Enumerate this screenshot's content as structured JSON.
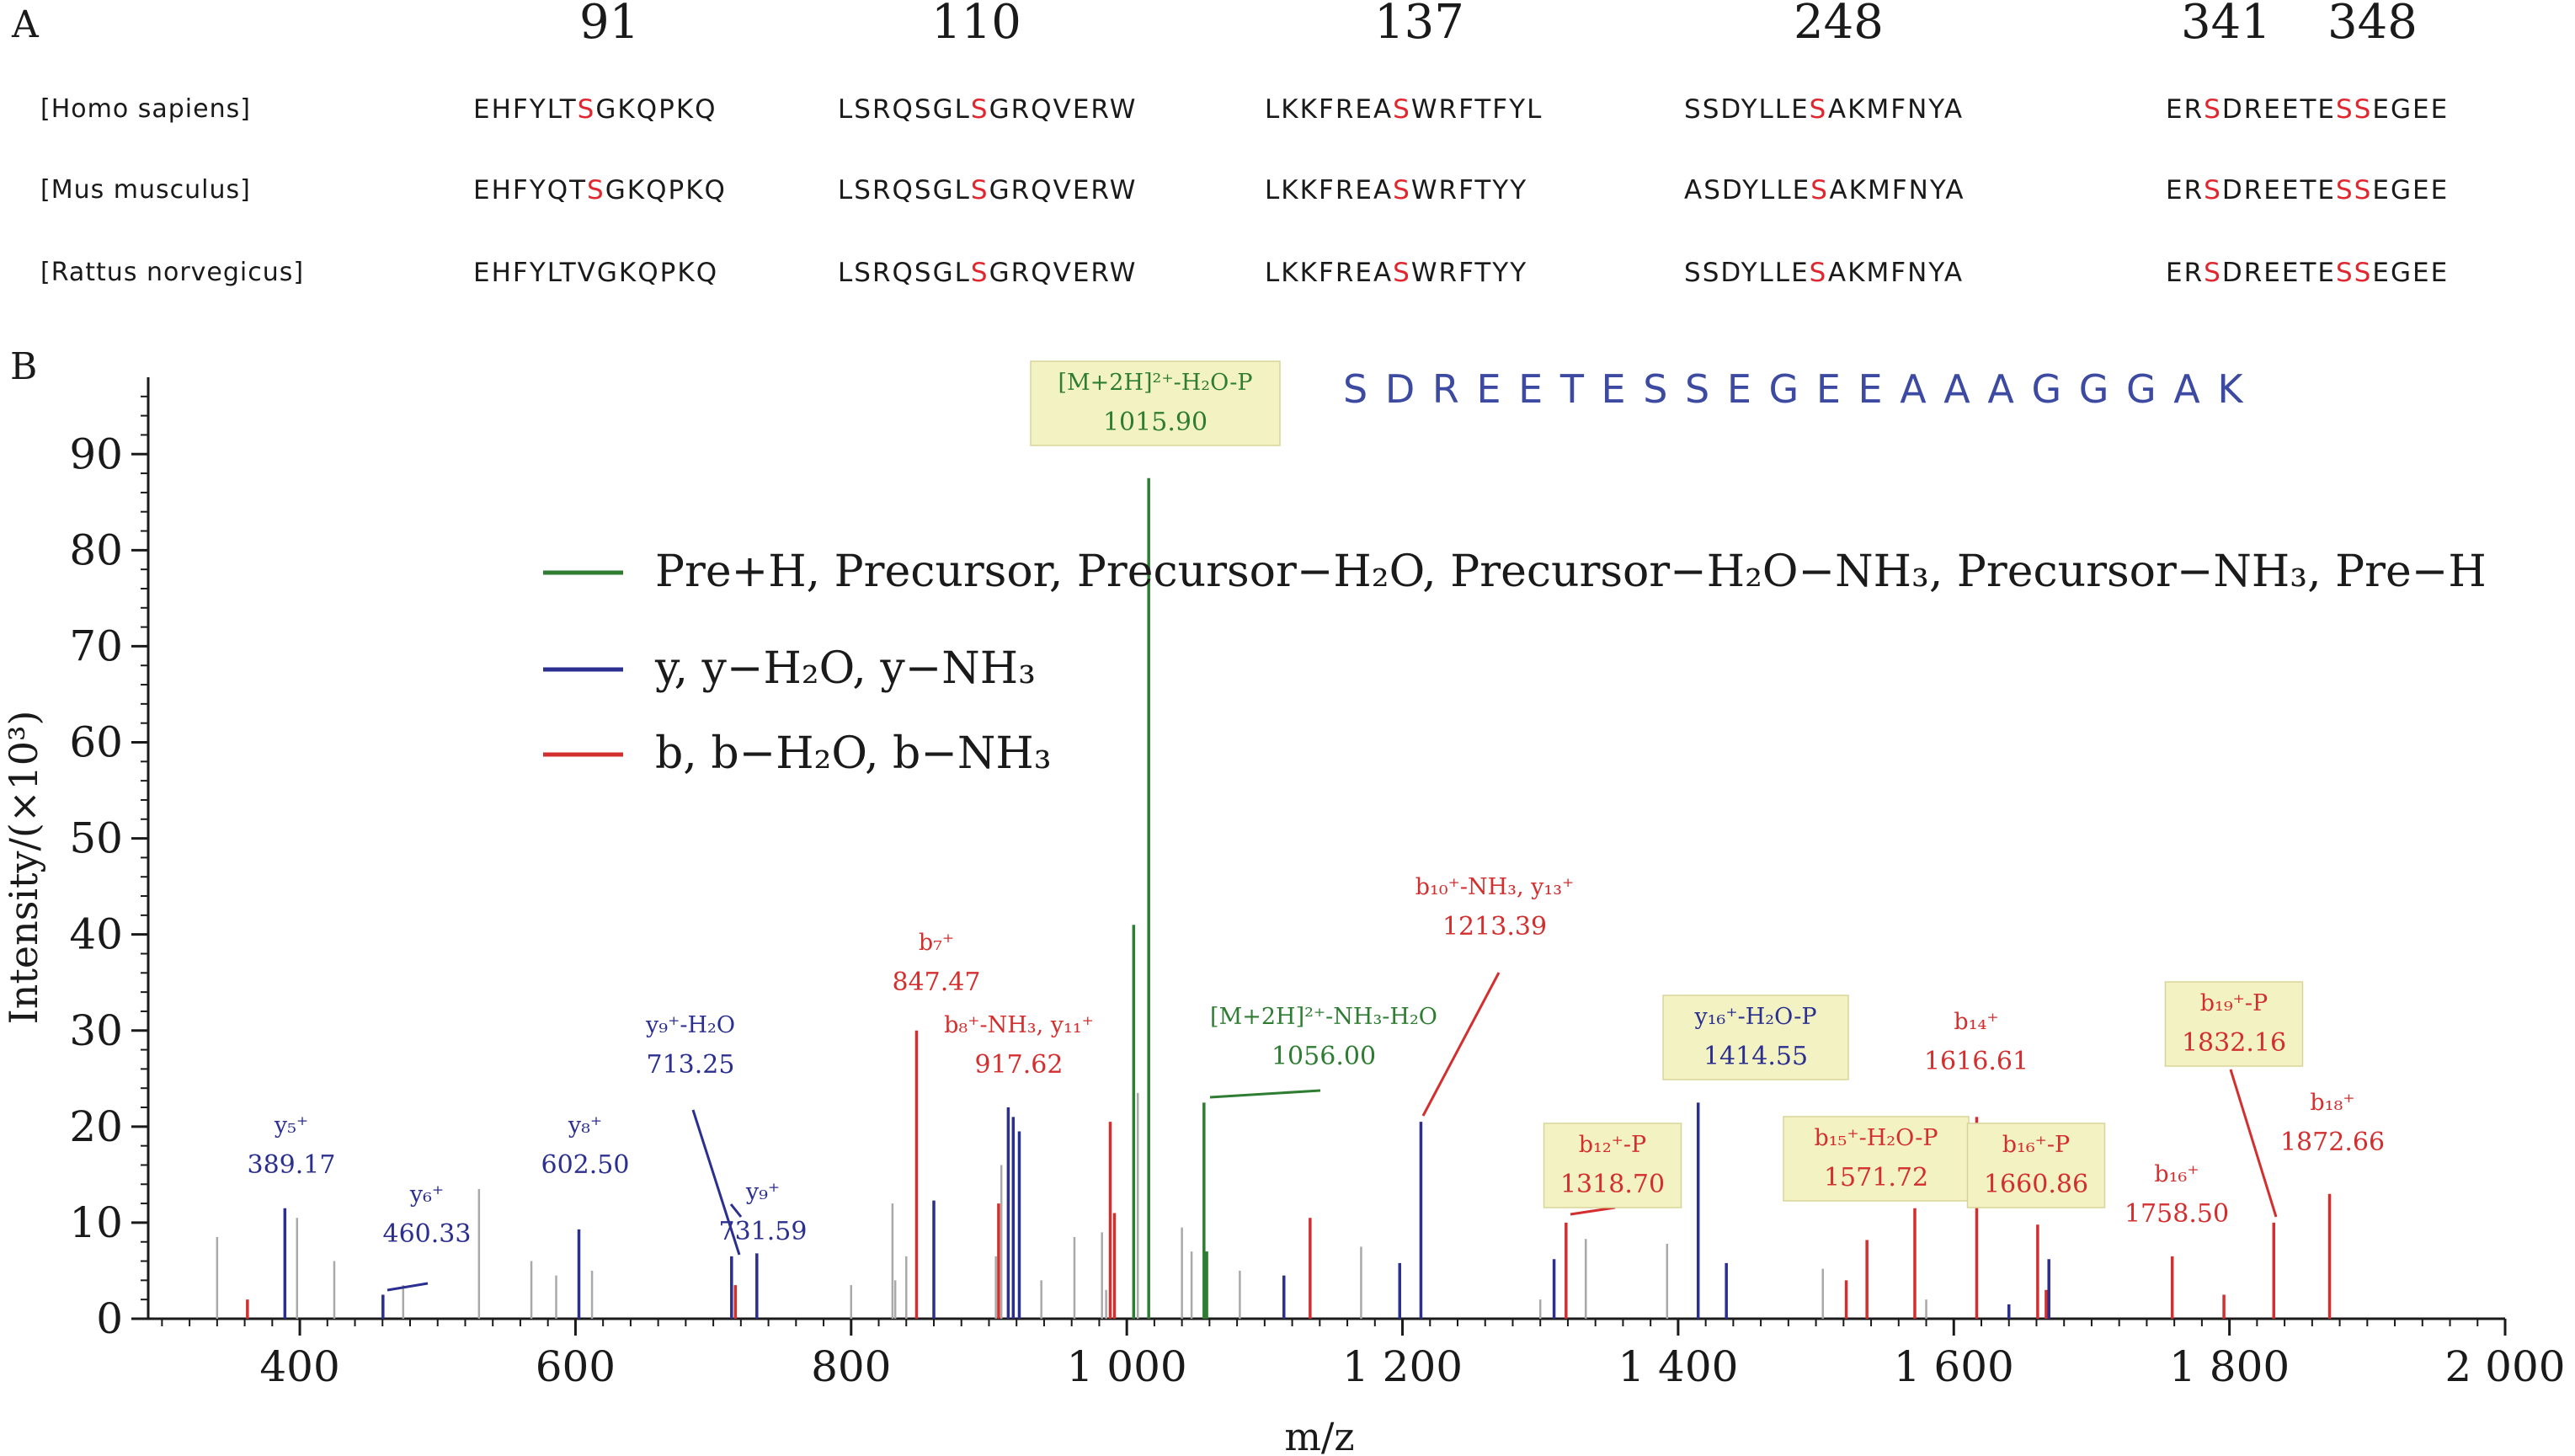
{
  "panel_a": {
    "label": "A",
    "positions": [
      "91",
      "110",
      "137",
      "248",
      "341",
      "348"
    ],
    "rows": [
      {
        "species": "[Homo sapiens]",
        "seqs": [
          "EHFYLTSGKQPKQ",
          "LSRQSGLSGRQVERW",
          "LKKFREASWRFTFYL",
          "SSDYLLESAKMFNYA",
          "ERSDREETESSEGEE"
        ]
      },
      {
        "species": "[Mus musculus]",
        "seqs": [
          "EHFYQTSGKQPKQ",
          "LSRQSGLSGRQVERW",
          "LKKFREASWRFTYY",
          "ASDYLLESAKMFNYA",
          "ERSDREETESSEGEE"
        ]
      },
      {
        "species": "[Rattus norvegicus]",
        "seqs": [
          "EHFYLTVGKQPKQ",
          "LSRQSGLSGRQVERW",
          "LKKFREASWRFTYY",
          "SSDYLLESAKMFNYA",
          "ERSDREETESSEGEE"
        ]
      }
    ],
    "highlight_color": "#e0262e"
  },
  "panel_b": {
    "label": "B",
    "peptide": "S D R E E T E S S E G E E A A A G G G A K",
    "colors": {
      "precursor": "#2e7d32",
      "y": "#2b2f8f",
      "b": "#d32f2f",
      "other": "#a9a9a9",
      "label_box": "#f3f2c3",
      "peptide_text": "#3d4aa1"
    }
  },
  "chart_data": {
    "type": "bar",
    "xlabel": "m/z",
    "ylabel": "Intensity/(×10³)",
    "xlim": [
      290,
      2000
    ],
    "ylim": [
      0,
      98
    ],
    "xticks": [
      400,
      600,
      800,
      1000,
      1200,
      1400,
      1600,
      1800,
      2000
    ],
    "xtick_labels": [
      "400",
      "600",
      "800",
      "1 000",
      "1 200",
      "1 400",
      "1 600",
      "1 800",
      "2 000"
    ],
    "yticks": [
      0,
      10,
      20,
      30,
      40,
      50,
      60,
      70,
      80,
      90
    ],
    "legend": [
      {
        "name": "Pre+H, Precursor, Precursor−H₂O, Precursor−H₂O−NH₃, Precursor−NH₃, Pre−H",
        "kind": "precursor"
      },
      {
        "name": "y, y−H₂O, y−NH₃",
        "kind": "y"
      },
      {
        "name": "b, b−H₂O, b−NH₃",
        "kind": "b"
      }
    ],
    "peaks": [
      {
        "mz": 340,
        "i": 8.5,
        "kind": "other"
      },
      {
        "mz": 362,
        "i": 2,
        "kind": "b"
      },
      {
        "mz": 389.17,
        "i": 11.5,
        "kind": "y"
      },
      {
        "mz": 398,
        "i": 10.5,
        "kind": "other"
      },
      {
        "mz": 425,
        "i": 6,
        "kind": "other"
      },
      {
        "mz": 460.33,
        "i": 2.5,
        "kind": "y"
      },
      {
        "mz": 475,
        "i": 3.5,
        "kind": "other"
      },
      {
        "mz": 530,
        "i": 13.5,
        "kind": "other"
      },
      {
        "mz": 568,
        "i": 6,
        "kind": "other"
      },
      {
        "mz": 586,
        "i": 4.5,
        "kind": "other"
      },
      {
        "mz": 602.5,
        "i": 9.3,
        "kind": "y"
      },
      {
        "mz": 612,
        "i": 5,
        "kind": "other"
      },
      {
        "mz": 713.25,
        "i": 6.5,
        "kind": "y"
      },
      {
        "mz": 716,
        "i": 3.5,
        "kind": "b"
      },
      {
        "mz": 731.59,
        "i": 6.8,
        "kind": "y"
      },
      {
        "mz": 800,
        "i": 3.5,
        "kind": "other"
      },
      {
        "mz": 830,
        "i": 12,
        "kind": "other"
      },
      {
        "mz": 832,
        "i": 4,
        "kind": "other"
      },
      {
        "mz": 840,
        "i": 6.5,
        "kind": "other"
      },
      {
        "mz": 847.47,
        "i": 30,
        "kind": "b"
      },
      {
        "mz": 860,
        "i": 12.3,
        "kind": "y"
      },
      {
        "mz": 905,
        "i": 6.5,
        "kind": "other"
      },
      {
        "mz": 907,
        "i": 12,
        "kind": "b"
      },
      {
        "mz": 909,
        "i": 16,
        "kind": "other"
      },
      {
        "mz": 914,
        "i": 22,
        "kind": "y"
      },
      {
        "mz": 917.62,
        "i": 21,
        "kind": "y"
      },
      {
        "mz": 922,
        "i": 19.5,
        "kind": "y"
      },
      {
        "mz": 938,
        "i": 4,
        "kind": "other"
      },
      {
        "mz": 962,
        "i": 8.5,
        "kind": "other"
      },
      {
        "mz": 982,
        "i": 9,
        "kind": "other"
      },
      {
        "mz": 985,
        "i": 3,
        "kind": "other"
      },
      {
        "mz": 988,
        "i": 20.5,
        "kind": "b"
      },
      {
        "mz": 991,
        "i": 11,
        "kind": "b"
      },
      {
        "mz": 1005,
        "i": 41,
        "kind": "precursor"
      },
      {
        "mz": 1008,
        "i": 23.5,
        "kind": "other"
      },
      {
        "mz": 1015.9,
        "i": 87.5,
        "kind": "precursor"
      },
      {
        "mz": 1040,
        "i": 9.5,
        "kind": "other"
      },
      {
        "mz": 1047,
        "i": 7,
        "kind": "other"
      },
      {
        "mz": 1056,
        "i": 22.5,
        "kind": "precursor"
      },
      {
        "mz": 1058,
        "i": 7,
        "kind": "precursor"
      },
      {
        "mz": 1082,
        "i": 5,
        "kind": "other"
      },
      {
        "mz": 1114,
        "i": 4.5,
        "kind": "y"
      },
      {
        "mz": 1133,
        "i": 10.5,
        "kind": "b"
      },
      {
        "mz": 1170,
        "i": 7.5,
        "kind": "other"
      },
      {
        "mz": 1198,
        "i": 5.8,
        "kind": "y"
      },
      {
        "mz": 1213.39,
        "i": 20.5,
        "kind": "y"
      },
      {
        "mz": 1300,
        "i": 2,
        "kind": "other"
      },
      {
        "mz": 1310,
        "i": 6.2,
        "kind": "y"
      },
      {
        "mz": 1318.7,
        "i": 10,
        "kind": "b"
      },
      {
        "mz": 1333,
        "i": 8.3,
        "kind": "other"
      },
      {
        "mz": 1392,
        "i": 7.8,
        "kind": "other"
      },
      {
        "mz": 1414.55,
        "i": 22.5,
        "kind": "y"
      },
      {
        "mz": 1435,
        "i": 5.8,
        "kind": "y"
      },
      {
        "mz": 1505,
        "i": 5.2,
        "kind": "other"
      },
      {
        "mz": 1522,
        "i": 4,
        "kind": "b"
      },
      {
        "mz": 1537,
        "i": 8.2,
        "kind": "b"
      },
      {
        "mz": 1571.72,
        "i": 11.5,
        "kind": "b"
      },
      {
        "mz": 1580,
        "i": 2,
        "kind": "other"
      },
      {
        "mz": 1616.61,
        "i": 21,
        "kind": "b"
      },
      {
        "mz": 1640,
        "i": 1.5,
        "kind": "y"
      },
      {
        "mz": 1660.86,
        "i": 9.8,
        "kind": "b"
      },
      {
        "mz": 1667,
        "i": 3,
        "kind": "b"
      },
      {
        "mz": 1669,
        "i": 6.2,
        "kind": "y"
      },
      {
        "mz": 1758.5,
        "i": 6.5,
        "kind": "b"
      },
      {
        "mz": 1796,
        "i": 2.5,
        "kind": "b"
      },
      {
        "mz": 1832.16,
        "i": 10,
        "kind": "b"
      },
      {
        "mz": 1872.66,
        "i": 13,
        "kind": "b"
      }
    ],
    "annotations": [
      {
        "text": "y₅⁺",
        "value": "389.17",
        "kind": "y",
        "mz": 389.17,
        "box": false
      },
      {
        "text": "y₆⁺",
        "value": "460.33",
        "kind": "y",
        "mz": 460.33,
        "box": false
      },
      {
        "text": "y₈⁺",
        "value": "602.50",
        "kind": "y",
        "mz": 602.5,
        "box": false
      },
      {
        "text": "y₉⁺-H₂O",
        "value": "713.25",
        "kind": "y",
        "mz": 713.25,
        "box": false
      },
      {
        "text": "y₉⁺",
        "value": "731.59",
        "kind": "y",
        "mz": 731.59,
        "box": false
      },
      {
        "text": "b₇⁺",
        "value": "847.47",
        "kind": "b",
        "mz": 847.47,
        "box": false
      },
      {
        "text": "b₈⁺-NH₃, y₁₁⁺",
        "value": "917.62",
        "kind": "b",
        "mz": 917.62,
        "box": false
      },
      {
        "text": "[M+2H]²⁺-H₂O-P",
        "value": "1015.90",
        "kind": "precursor",
        "mz": 1015.9,
        "box": true
      },
      {
        "text": "[M+2H]²⁺-NH₃-H₂O",
        "value": "1056.00",
        "kind": "precursor",
        "mz": 1056,
        "box": false
      },
      {
        "text": "b₁₀⁺-NH₃, y₁₃⁺",
        "value": "1213.39",
        "kind": "b",
        "mz": 1213.39,
        "box": false
      },
      {
        "text": "b₁₂⁺-P",
        "value": "1318.70",
        "kind": "b",
        "mz": 1318.7,
        "box": true
      },
      {
        "text": "y₁₆⁺-H₂O-P",
        "value": "1414.55",
        "kind": "y",
        "mz": 1414.55,
        "box": true
      },
      {
        "text": "b₁₅⁺-H₂O-P",
        "value": "1571.72",
        "kind": "b",
        "mz": 1571.72,
        "box": true
      },
      {
        "text": "b₁₄⁺",
        "value": "1616.61",
        "kind": "b",
        "mz": 1616.61,
        "box": false
      },
      {
        "text": "b₁₆⁺-P",
        "value": "1660.86",
        "kind": "b",
        "mz": 1660.86,
        "box": true
      },
      {
        "text": "b₁₆⁺",
        "value": "1758.50",
        "kind": "b",
        "mz": 1758.5,
        "box": false
      },
      {
        "text": "b₁₉⁺-P",
        "value": "1832.16",
        "kind": "b",
        "mz": 1832.16,
        "box": true
      },
      {
        "text": "b₁₈⁺",
        "value": "1872.66",
        "kind": "b",
        "mz": 1872.66,
        "box": false
      }
    ]
  }
}
